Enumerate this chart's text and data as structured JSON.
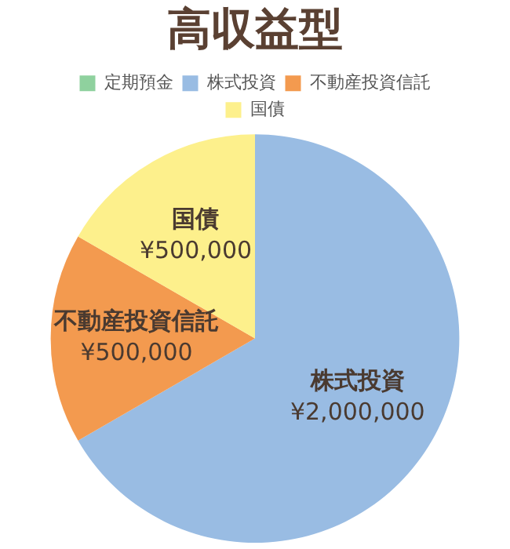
{
  "chart_data": {
    "type": "pie",
    "title": "高収益型",
    "categories": [
      "定期預金",
      "株式投資",
      "不動産投資信託",
      "国債"
    ],
    "values": [
      0,
      2000000,
      500000,
      500000
    ],
    "colors": [
      "#8fd19e",
      "#99bce3",
      "#f39a4f",
      "#fdf08c"
    ],
    "value_labels": [
      null,
      "¥2,000,000",
      "¥500,000",
      "¥500,000"
    ],
    "legend": "top"
  }
}
